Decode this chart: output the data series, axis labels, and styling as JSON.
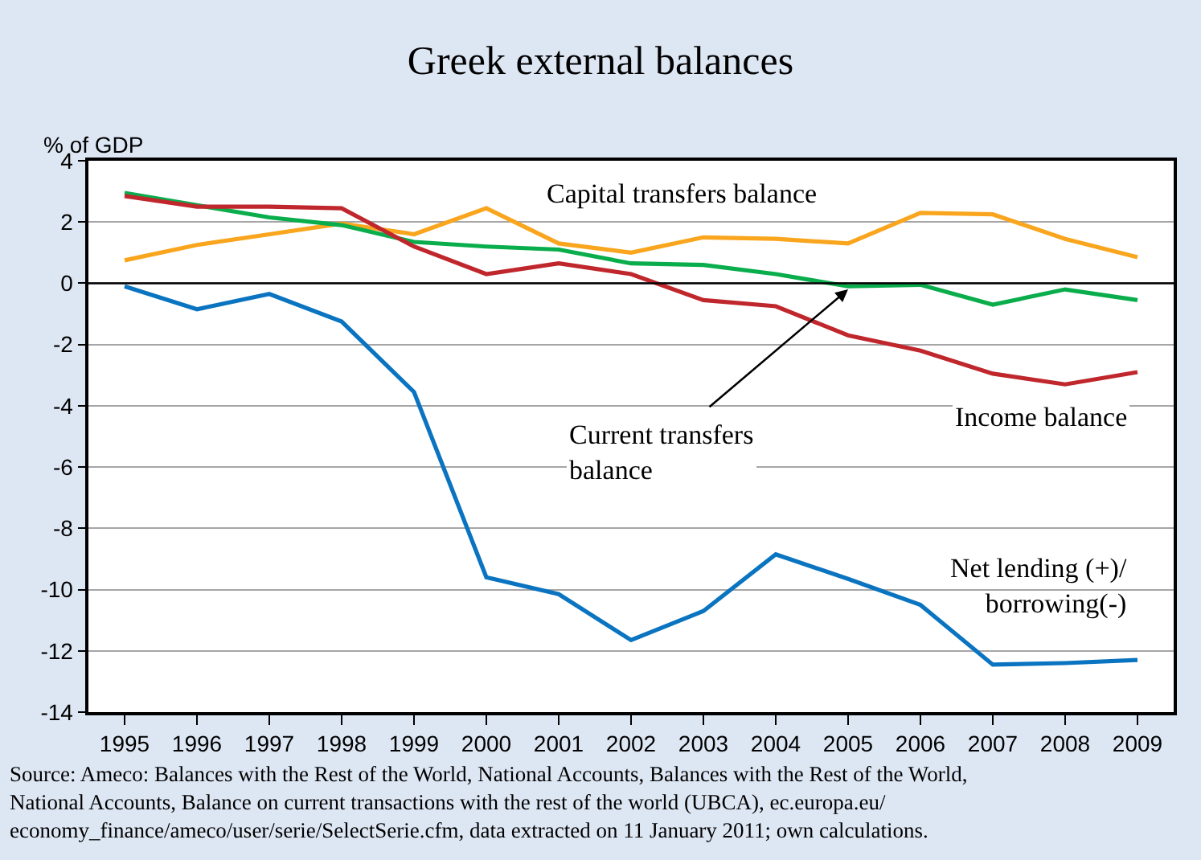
{
  "chart_data": {
    "type": "line",
    "title": "Greek external balances",
    "ylabel": "% of GDP",
    "categories": [
      "1995",
      "1996",
      "1997",
      "1998",
      "1999",
      "2000",
      "2001",
      "2002",
      "2003",
      "2004",
      "2005",
      "2006",
      "2007",
      "2008",
      "2009"
    ],
    "series": [
      {
        "name": "Capital transfers balance",
        "color": "#f9a51d",
        "values": [
          0.75,
          1.25,
          1.6,
          1.95,
          1.6,
          2.45,
          1.3,
          1.0,
          1.5,
          1.45,
          1.3,
          2.3,
          2.25,
          1.45,
          0.85
        ]
      },
      {
        "name": "Current transfers balance",
        "color": "#0aad4c",
        "values": [
          2.95,
          2.55,
          2.15,
          1.9,
          1.35,
          1.2,
          1.1,
          0.65,
          0.6,
          0.3,
          -0.1,
          -0.05,
          -0.7,
          -0.2,
          -0.55
        ]
      },
      {
        "name": "Income balance",
        "color": "#c0272d",
        "values": [
          2.85,
          2.5,
          2.5,
          2.45,
          1.2,
          0.3,
          0.65,
          0.3,
          -0.55,
          -0.75,
          -1.7,
          -2.2,
          -2.95,
          -3.3,
          -2.9
        ]
      },
      {
        "name": "Net lending (+)/ borrowing(-)",
        "color": "#0a74c1",
        "values": [
          -0.1,
          -0.85,
          -0.35,
          -1.25,
          -3.55,
          -9.6,
          -10.15,
          -11.65,
          -10.7,
          -8.85,
          -9.65,
          -10.5,
          -12.45,
          -12.4,
          -12.3
        ]
      }
    ],
    "ylim": [
      -14,
      4
    ],
    "yticks": [
      -14,
      -12,
      -10,
      -8,
      -6,
      -4,
      -2,
      0,
      2,
      4
    ],
    "ref_lines": [
      {
        "axis": "y",
        "value": 0,
        "color": "#000000"
      }
    ],
    "grid": "y",
    "legend": false,
    "marker": "none",
    "line_style": "solid",
    "annotations": [
      "Source: Ameco: Balances with the Rest of the World, National Accounts, Balances with the Rest of the World,\nNational Accounts, Balance on current transactions with the rest of the world (UBCA), ec.europa.eu/\neconomy_finance/ameco/user/serie/SelectSerie.cfm, data extracted on 11 January 2011; own calculations."
    ]
  }
}
